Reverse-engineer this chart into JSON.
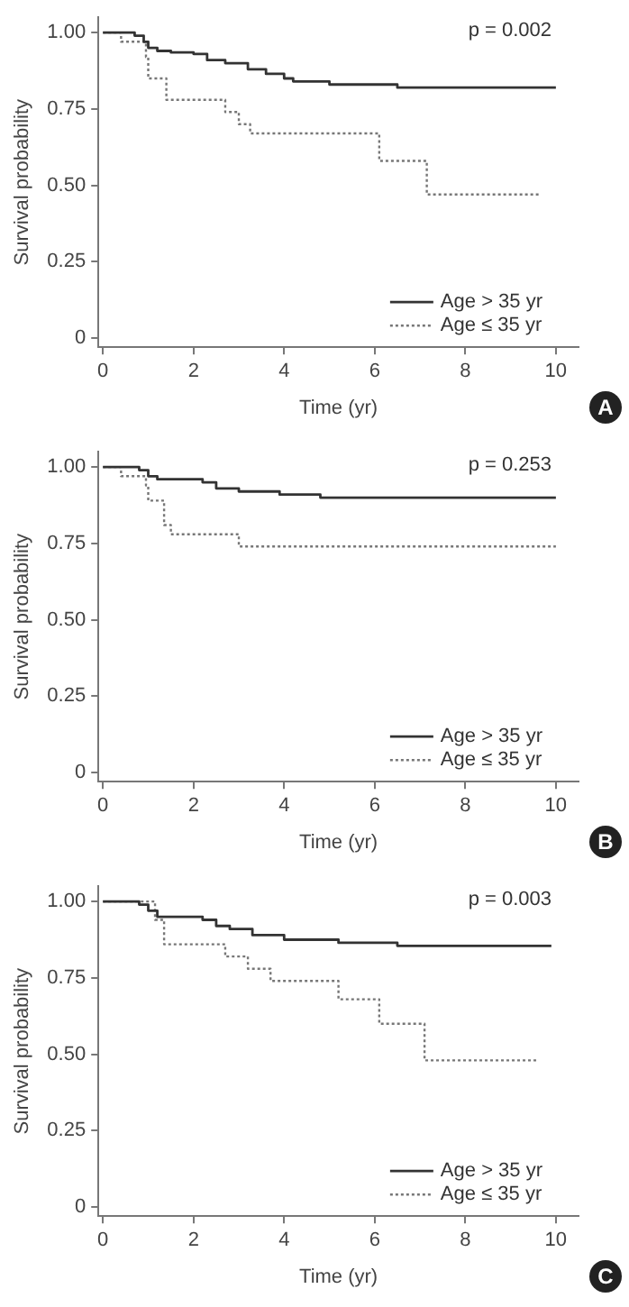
{
  "chart_data": [
    {
      "type": "step",
      "xlabel": "Time (yr)",
      "ylabel": "Survival probability",
      "xlim": [
        -0.1,
        10.5
      ],
      "ylim": [
        -0.03,
        1.05
      ],
      "xticks": [
        0,
        2,
        4,
        6,
        8,
        10
      ],
      "yticks": [
        {
          "value": 0,
          "label": "0"
        },
        {
          "value": 0.25,
          "label": "0.25"
        },
        {
          "value": 0.5,
          "label": "0.50"
        },
        {
          "value": 0.75,
          "label": "0.75"
        },
        {
          "value": 1,
          "label": "1.00"
        }
      ],
      "grid": false,
      "legend": "bottom right",
      "marker": "none",
      "annotations": [
        "p = 0.002",
        "A"
      ],
      "series": [
        {
          "name": "Age > 35 yr",
          "color": "#333333",
          "line_style": "solid",
          "x": [
            0,
            0.7,
            0.9,
            1.0,
            1.2,
            1.5,
            2.0,
            2.3,
            2.7,
            3.2,
            3.6,
            4.0,
            4.2,
            5.0,
            6.5,
            10.0
          ],
          "values": [
            1,
            0.99,
            0.97,
            0.95,
            0.94,
            0.935,
            0.93,
            0.91,
            0.9,
            0.88,
            0.865,
            0.85,
            0.84,
            0.83,
            0.82,
            0.82
          ]
        },
        {
          "name": "Age ≤ 35 yr",
          "color": "#777777",
          "line_style": "dotted",
          "x": [
            0,
            0.4,
            0.95,
            1.0,
            1.4,
            2.7,
            3.0,
            3.25,
            6.1,
            7.15,
            9.65
          ],
          "values": [
            1,
            0.97,
            0.92,
            0.85,
            0.78,
            0.74,
            0.7,
            0.67,
            0.58,
            0.47,
            0.47
          ]
        }
      ]
    },
    {
      "type": "step",
      "xlabel": "Time (yr)",
      "ylabel": "Survival probability",
      "xlim": [
        -0.1,
        10.5
      ],
      "ylim": [
        -0.03,
        1.05
      ],
      "xticks": [
        0,
        2,
        4,
        6,
        8,
        10
      ],
      "yticks": [
        {
          "value": 0,
          "label": "0"
        },
        {
          "value": 0.25,
          "label": "0.25"
        },
        {
          "value": 0.5,
          "label": "0.50"
        },
        {
          "value": 0.75,
          "label": "0.75"
        },
        {
          "value": 1,
          "label": "1.00"
        }
      ],
      "grid": false,
      "legend": "bottom right",
      "marker": "none",
      "annotations": [
        "p = 0.253",
        "B"
      ],
      "series": [
        {
          "name": "Age > 35 yr",
          "color": "#333333",
          "line_style": "solid",
          "x": [
            0,
            0.8,
            1.0,
            1.2,
            2.2,
            2.5,
            3.0,
            3.9,
            4.8,
            10.0
          ],
          "values": [
            1,
            0.99,
            0.97,
            0.96,
            0.95,
            0.93,
            0.92,
            0.91,
            0.9,
            0.9
          ]
        },
        {
          "name": "Age ≤ 35 yr",
          "color": "#777777",
          "line_style": "dotted",
          "x": [
            0,
            0.4,
            0.95,
            1.0,
            1.35,
            1.5,
            3.0,
            10.0
          ],
          "values": [
            1,
            0.97,
            0.94,
            0.89,
            0.81,
            0.78,
            0.74,
            0.74
          ]
        }
      ]
    },
    {
      "type": "step",
      "xlabel": "Time (yr)",
      "ylabel": "Survival probability",
      "xlim": [
        -0.1,
        10.5
      ],
      "ylim": [
        -0.03,
        1.05
      ],
      "xticks": [
        0,
        2,
        4,
        6,
        8,
        10
      ],
      "yticks": [
        {
          "value": 0,
          "label": "0"
        },
        {
          "value": 0.25,
          "label": "0.25"
        },
        {
          "value": 0.5,
          "label": "0.50"
        },
        {
          "value": 0.75,
          "label": "0.75"
        },
        {
          "value": 1,
          "label": "1.00"
        }
      ],
      "grid": false,
      "legend": "bottom right",
      "marker": "none",
      "annotations": [
        "p = 0.003",
        "C"
      ],
      "series": [
        {
          "name": "Age > 35 yr",
          "color": "#333333",
          "line_style": "solid",
          "x": [
            0,
            0.8,
            1.0,
            1.2,
            2.2,
            2.5,
            2.8,
            3.3,
            4.0,
            5.2,
            6.5,
            9.9
          ],
          "values": [
            1,
            0.99,
            0.97,
            0.95,
            0.94,
            0.92,
            0.91,
            0.89,
            0.875,
            0.865,
            0.855,
            0.855
          ]
        },
        {
          "name": "Age ≤ 35 yr",
          "color": "#777777",
          "line_style": "dotted",
          "x": [
            0,
            1.15,
            1.35,
            2.7,
            3.2,
            3.7,
            5.2,
            6.1,
            7.1,
            9.6
          ],
          "values": [
            1,
            0.94,
            0.86,
            0.82,
            0.78,
            0.74,
            0.68,
            0.6,
            0.48,
            0.48
          ]
        }
      ]
    }
  ]
}
